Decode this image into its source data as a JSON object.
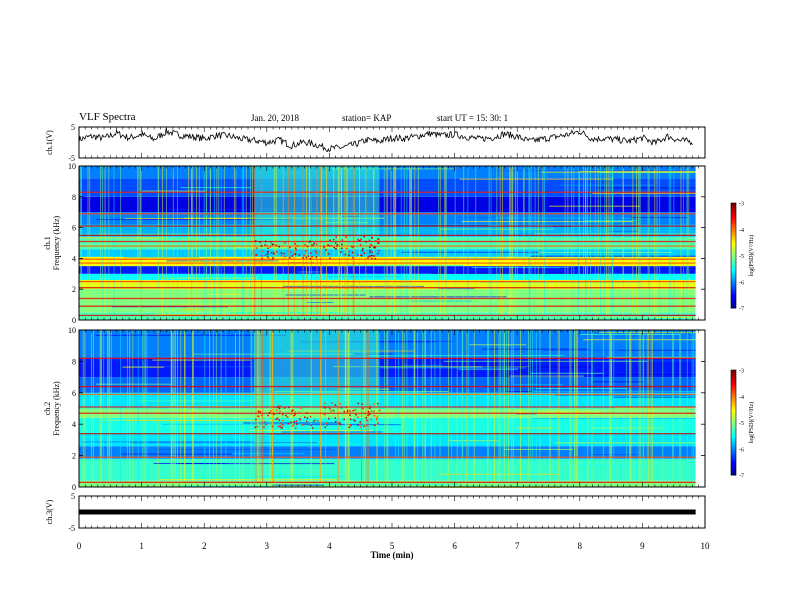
{
  "header": {
    "title": "VLF Spectra",
    "date": "Jan. 20, 2018",
    "station": "station= KAP",
    "start": "start  UT  =   15: 30: 1"
  },
  "chart_data": [
    {
      "type": "line",
      "name": "ch1-waveform",
      "ylabel": "ch.1(V)",
      "ylim": [
        -5,
        5
      ],
      "yticks": [
        "5",
        "-5"
      ],
      "xlim": [
        0,
        10
      ],
      "x": [
        0,
        0.2,
        0.4,
        0.6,
        0.8,
        1.0,
        1.2,
        1.4,
        1.6,
        1.8,
        2.0,
        2.2,
        2.4,
        2.6,
        2.8,
        3.0,
        3.2,
        3.4,
        3.6,
        3.8,
        4.0,
        4.2,
        4.4,
        4.6,
        4.8,
        5.0,
        5.2,
        5.4,
        5.6,
        5.8,
        6.0,
        6.2,
        6.4,
        6.6,
        6.8,
        7.0,
        7.2,
        7.4,
        7.6,
        7.8,
        8.0,
        8.2,
        8.4,
        8.6,
        8.8,
        9.0,
        9.2,
        9.4,
        9.6,
        9.8
      ],
      "y": [
        1.0,
        2.0,
        1.4,
        3.0,
        1.5,
        2.6,
        1.0,
        3.6,
        2.4,
        1.9,
        1.2,
        2.3,
        2.1,
        1.1,
        0.7,
        0.0,
        0.8,
        -1.0,
        0.2,
        -0.8,
        -2.0,
        -1.6,
        -0.7,
        0.8,
        0.4,
        1.5,
        1.3,
        2.0,
        2.9,
        2.2,
        2.6,
        1.8,
        1.1,
        1.6,
        2.8,
        1.9,
        0.4,
        1.1,
        1.8,
        2.5,
        3.6,
        1.2,
        1.3,
        0.9,
        0.4,
        1.5,
        -0.2,
        2.0,
        0.6,
        0.3
      ],
      "color": "#000000"
    },
    {
      "type": "heatmap",
      "name": "ch1-spectrogram",
      "ylabel": "ch.1\nFrequency (kHz)",
      "ylim": [
        0,
        10
      ],
      "yticks": [
        "0",
        "2",
        "4",
        "6",
        "8",
        "10"
      ],
      "xlim": [
        0,
        9.85
      ],
      "bands": [
        {
          "f0": 0.0,
          "f1": 0.5,
          "level": -5.2
        },
        {
          "f0": 0.5,
          "f1": 1.2,
          "level": -5.0
        },
        {
          "f0": 1.2,
          "f1": 2.0,
          "level": -5.0
        },
        {
          "f0": 2.0,
          "f1": 2.6,
          "level": -4.6
        },
        {
          "f0": 2.6,
          "f1": 3.0,
          "level": -5.5
        },
        {
          "f0": 3.0,
          "f1": 3.5,
          "level": -6.4
        },
        {
          "f0": 3.5,
          "f1": 4.1,
          "level": -4.5
        },
        {
          "f0": 4.1,
          "f1": 4.6,
          "level": -5.7
        },
        {
          "f0": 4.6,
          "f1": 5.4,
          "level": -5.2
        },
        {
          "f0": 5.4,
          "f1": 6.2,
          "level": -5.8
        },
        {
          "f0": 6.2,
          "f1": 7.0,
          "level": -6.0
        },
        {
          "f0": 7.0,
          "f1": 8.0,
          "level": -6.6
        },
        {
          "f0": 8.0,
          "f1": 9.2,
          "level": -6.2
        },
        {
          "f0": 9.2,
          "f1": 10.0,
          "level": -6.0
        }
      ],
      "lines_khz": [
        0.3,
        0.9,
        1.4,
        2.1,
        2.5,
        3.7,
        3.95,
        4.8,
        5.1,
        5.5,
        6.1,
        6.9,
        8.3
      ],
      "bursts": [
        {
          "t0": 2.8,
          "t1": 3.8,
          "f0": 4.0,
          "f1": 5.2,
          "level": -3.8
        },
        {
          "t0": 3.9,
          "t1": 4.8,
          "f0": 4.0,
          "f1": 5.5,
          "level": -3.8
        }
      ],
      "noise_region": {
        "t0": 2.8,
        "t1": 4.8,
        "f0": 5.0,
        "f1": 10.0,
        "level": -5.3
      },
      "colorbar": {
        "label": "log(PSD)(V²/Hz)",
        "ticks": [
          "-3",
          "-4",
          "-5",
          "-6",
          "-7"
        ],
        "range": [
          -7,
          -3
        ]
      }
    },
    {
      "type": "heatmap",
      "name": "ch2-spectrogram",
      "ylabel": "ch.2\nFrequency (kHz)",
      "ylim": [
        0,
        10
      ],
      "yticks": [
        "0",
        "2",
        "4",
        "6",
        "8",
        "10"
      ],
      "xlim": [
        0,
        9.85
      ],
      "bands": [
        {
          "f0": 0.0,
          "f1": 0.4,
          "level": -5.0
        },
        {
          "f0": 0.4,
          "f1": 1.8,
          "level": -5.3
        },
        {
          "f0": 1.8,
          "f1": 2.6,
          "level": -6.0
        },
        {
          "f0": 2.6,
          "f1": 3.4,
          "level": -5.6
        },
        {
          "f0": 3.4,
          "f1": 4.4,
          "level": -5.4
        },
        {
          "f0": 4.4,
          "f1": 5.0,
          "level": -5.0
        },
        {
          "f0": 5.0,
          "f1": 6.0,
          "level": -5.6
        },
        {
          "f0": 6.0,
          "f1": 7.0,
          "level": -6.1
        },
        {
          "f0": 7.0,
          "f1": 8.2,
          "level": -6.4
        },
        {
          "f0": 8.2,
          "f1": 10.0,
          "level": -6.0
        }
      ],
      "lines_khz": [
        0.3,
        1.9,
        3.4,
        4.7,
        5.1,
        5.9,
        6.4,
        8.2
      ],
      "bursts": [
        {
          "t0": 2.8,
          "t1": 3.8,
          "f0": 3.8,
          "f1": 5.2,
          "level": -3.9
        },
        {
          "t0": 3.9,
          "t1": 4.8,
          "f0": 3.8,
          "f1": 5.4,
          "level": -3.9
        }
      ],
      "noise_region": {
        "t0": 2.8,
        "t1": 4.8,
        "f0": 5.0,
        "f1": 10.0,
        "level": -5.3
      },
      "colorbar": {
        "label": "log(PSD)(V²/Hz)",
        "ticks": [
          "-3",
          "-4",
          "-5",
          "-6",
          "-7"
        ],
        "range": [
          -7,
          -3
        ]
      }
    },
    {
      "type": "line",
      "name": "ch3-waveform",
      "ylabel": "ch.3(V)",
      "ylim": [
        -5,
        5
      ],
      "yticks": [
        "5",
        "-5"
      ],
      "xlim": [
        0,
        10
      ],
      "x": [
        0,
        9.85
      ],
      "y": [
        0,
        0
      ],
      "color": "#000000",
      "xlabel": "Time  (min)",
      "xticks": [
        "0",
        "1",
        "2",
        "3",
        "4",
        "5",
        "6",
        "7",
        "8",
        "9",
        "10"
      ]
    }
  ]
}
